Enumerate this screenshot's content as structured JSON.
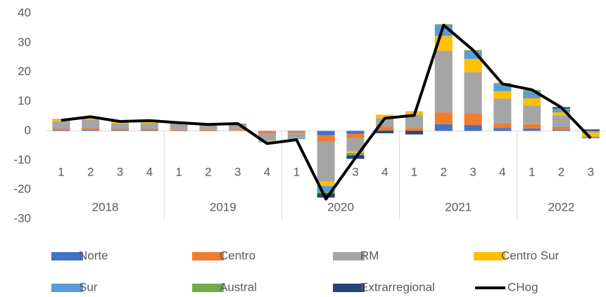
{
  "chart_data": {
    "type": "bar",
    "groups": [
      {
        "label": "2018",
        "categories": [
          "1",
          "2",
          "3",
          "4"
        ]
      },
      {
        "label": "2019",
        "categories": [
          "1",
          "2",
          "3",
          "4"
        ]
      },
      {
        "label": "2020",
        "categories": [
          "1",
          "2",
          "3",
          "4"
        ]
      },
      {
        "label": "2021",
        "categories": [
          "1",
          "2",
          "3",
          "4"
        ]
      },
      {
        "label": "2022",
        "categories": [
          "1",
          "2",
          "3"
        ]
      }
    ],
    "ylim": [
      -30,
      40
    ],
    "yticks": [
      -30,
      -20,
      -10,
      0,
      10,
      20,
      30,
      40
    ],
    "series": [
      {
        "name": "Norte",
        "color": "#4472c4",
        "values": [
          0.2,
          0.3,
          0.2,
          0.2,
          0.1,
          0.1,
          0,
          -0.1,
          -0.2,
          -1.5,
          -1,
          0.2,
          0,
          2.3,
          2,
          1,
          0.8,
          0.3,
          0
        ]
      },
      {
        "name": "Centro",
        "color": "#ed7d31",
        "values": [
          0.5,
          0.7,
          0.5,
          0.5,
          0.3,
          0.3,
          0.3,
          -0.8,
          -0.5,
          -2.2,
          -1.5,
          1.3,
          1,
          4,
          4,
          1.5,
          1.5,
          1,
          0
        ]
      },
      {
        "name": "RM",
        "color": "#a5a5a5",
        "values": [
          2.5,
          2.8,
          1.8,
          2,
          2.2,
          1.6,
          1.8,
          -2.5,
          -1.8,
          -13.5,
          -4.5,
          2.8,
          4.5,
          21,
          14,
          8.5,
          6.3,
          4,
          -0.5
        ]
      },
      {
        "name": "Centro Sur",
        "color": "#ffc000",
        "values": [
          0.5,
          0.5,
          0.5,
          0.5,
          0.1,
          0,
          0,
          -0.3,
          0,
          -1.5,
          -0.5,
          1.2,
          1.2,
          5,
          4.5,
          2.5,
          2.5,
          1,
          -1.5
        ]
      },
      {
        "name": "Sur",
        "color": "#5b9bd5",
        "values": [
          0.2,
          0.3,
          0.2,
          0.2,
          0.1,
          0.1,
          0.2,
          -0.2,
          -0.3,
          -2,
          -0.5,
          0,
          0,
          3.5,
          2.5,
          2.3,
          2.3,
          1,
          -0.5
        ]
      },
      {
        "name": "Austral",
        "color": "#70ad47",
        "values": [
          0.1,
          0.1,
          0.1,
          0.1,
          0,
          0,
          0.2,
          0,
          0,
          -0.5,
          -0.3,
          0,
          0,
          0.5,
          0.5,
          0.5,
          0.5,
          0.3,
          0
        ]
      },
      {
        "name": "Extrarregional",
        "color": "#264478",
        "values": [
          0,
          0,
          0,
          0,
          0,
          0,
          0,
          0,
          0,
          -1.5,
          -1.2,
          -0.8,
          -1.2,
          0,
          0,
          0,
          0,
          0.5,
          0.5
        ]
      },
      {
        "name": "CHog",
        "type": "line",
        "color": "#000000",
        "values": [
          3.6,
          4.8,
          3.2,
          3.5,
          2.8,
          2.2,
          2.5,
          -4.3,
          -3,
          -23.2,
          -9.2,
          4.3,
          5.3,
          36,
          27.5,
          16,
          14,
          8,
          -2.5
        ]
      }
    ]
  }
}
